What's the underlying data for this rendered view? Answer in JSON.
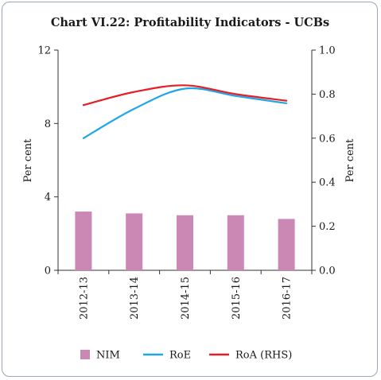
{
  "chart_data": {
    "type": "bar",
    "title": "Chart VI.22: Profitability Indicators - UCBs",
    "categories": [
      "2012-13",
      "2013-14",
      "2014-15",
      "2015-16",
      "2016-17"
    ],
    "ylabel": "Per cent",
    "ylabel_right": "Per cent",
    "ylim": [
      0,
      12
    ],
    "ylim_right": [
      0,
      1.0
    ],
    "yticks": [
      "0",
      "4",
      "8",
      "12"
    ],
    "yticks_right": [
      "0.0",
      "0.2",
      "0.4",
      "0.6",
      "0.8",
      "1.0"
    ],
    "legend_position": "bottom",
    "series": [
      {
        "name": "NIM",
        "kind": "bar",
        "axis": "left",
        "color": "#cc88b4",
        "values": [
          3.2,
          3.1,
          3.0,
          3.0,
          2.8
        ]
      },
      {
        "name": "RoE",
        "kind": "line",
        "axis": "left",
        "color": "#1ea7e8",
        "values": [
          7.2,
          8.8,
          9.9,
          9.5,
          9.1
        ]
      },
      {
        "name": "RoA (RHS)",
        "kind": "line",
        "axis": "right",
        "color": "#e41f26",
        "values": [
          0.75,
          0.81,
          0.84,
          0.8,
          0.77
        ]
      }
    ]
  }
}
